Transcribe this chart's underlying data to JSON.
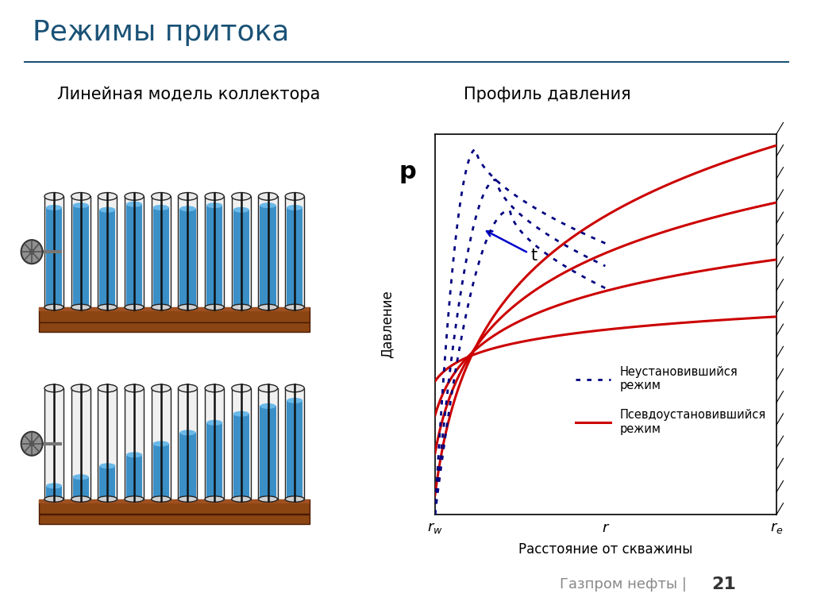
{
  "title": "Режимы притока",
  "title_color": "#1a5276",
  "title_fontsize": 26,
  "separator_color": "#1a5276",
  "left_label": "Линейная модель коллектора",
  "right_label": "Профиль давления",
  "label_fontsize": 15,
  "ylabel": "Давление",
  "xlabel": "Расстояние от скважины",
  "legend_dotted": "Неустановившийся\nрежим",
  "legend_solid": "Псевдоустановившийся\nрежим",
  "arrow_text": "t",
  "footer": "Газпром нефты",
  "footer_num": "21",
  "bg_color": "#ffffff",
  "red_color": "#cc0000",
  "blue_dotted_color": "#000080",
  "arrow_color": "#0000cc",
  "tube_body_color": "#3a8fc7",
  "tube_fill_light": "#6ab8e8",
  "tube_border_color": "#222222",
  "wood_color": "#8B4513",
  "wood_highlight": "#a05020"
}
